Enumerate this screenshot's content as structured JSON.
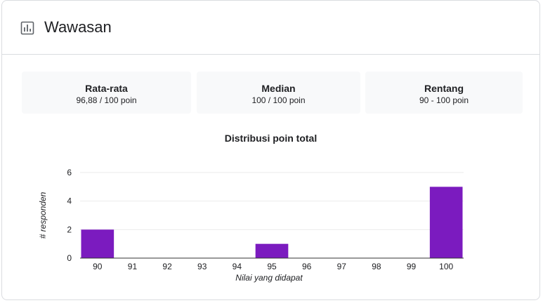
{
  "header": {
    "title": "Wawasan",
    "icon": "bar-chart-icon"
  },
  "stats": [
    {
      "label": "Rata-rata",
      "value": "96,88 / 100 poin"
    },
    {
      "label": "Median",
      "value": "100 / 100 poin"
    },
    {
      "label": "Rentang",
      "value": "90 - 100 poin"
    }
  ],
  "colors": {
    "bar": "#7b1bbf",
    "grid": "#ebebeb",
    "axis": "#333333",
    "stat_bg": "#f8f9fa"
  },
  "chart_data": {
    "type": "bar",
    "title": "Distribusi poin total",
    "xlabel": "Nilai yang didapat",
    "ylabel": "# responden",
    "categories": [
      "90",
      "91",
      "92",
      "93",
      "94",
      "95",
      "96",
      "97",
      "98",
      "99",
      "100"
    ],
    "values": [
      2,
      0,
      0,
      0,
      0,
      1,
      0,
      0,
      0,
      0,
      5
    ],
    "ylim": [
      0,
      6
    ],
    "yticks": [
      "0",
      "2",
      "4",
      "6"
    ],
    "grid": true
  }
}
